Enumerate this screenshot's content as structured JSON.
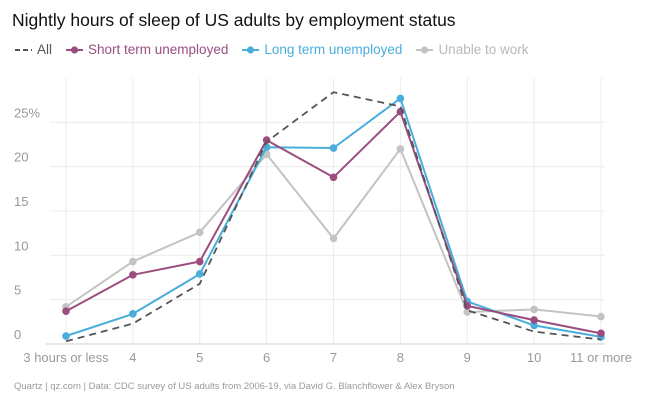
{
  "chart_data": {
    "type": "line",
    "title": "Nightly hours of sleep of US adults by employment status",
    "categories": [
      "3 hours or less",
      "4",
      "5",
      "6",
      "7",
      "8",
      "9",
      "10",
      "11 or more"
    ],
    "y_tick_labels": [
      "0",
      "5",
      "10",
      "15",
      "20",
      "25%"
    ],
    "y_ticks": [
      0,
      5,
      10,
      15,
      20,
      25
    ],
    "ylim": [
      0,
      30
    ],
    "xlabel": "",
    "ylabel": "",
    "grid": true,
    "legend_position": "top-left",
    "series": [
      {
        "name": "All",
        "style": "dashed",
        "markers": false,
        "color": "#555555",
        "values": [
          0.3,
          2.3,
          6.8,
          22.8,
          28.4,
          26.8,
          3.8,
          1.4,
          0.5
        ]
      },
      {
        "name": "Short term unemployed",
        "style": "solid",
        "markers": true,
        "color": "#9b4d7f",
        "values": [
          3.7,
          7.8,
          9.3,
          23.0,
          18.8,
          26.2,
          4.3,
          2.7,
          1.2
        ]
      },
      {
        "name": "Long term unemployed",
        "style": "solid",
        "markers": true,
        "color": "#4aaedc",
        "values": [
          0.9,
          3.4,
          7.9,
          22.2,
          22.1,
          27.7,
          4.8,
          2.1,
          0.8
        ]
      },
      {
        "name": "Unable to work",
        "style": "solid",
        "markers": true,
        "color": "#c3c3c3",
        "values": [
          4.2,
          9.3,
          12.6,
          21.4,
          11.9,
          22.0,
          3.6,
          3.9,
          3.1
        ]
      }
    ]
  },
  "source": "Quartz | qz.com | Data: CDC survey of US adults from 2006-19, via David G. Blanchflower & Alex Bryson"
}
